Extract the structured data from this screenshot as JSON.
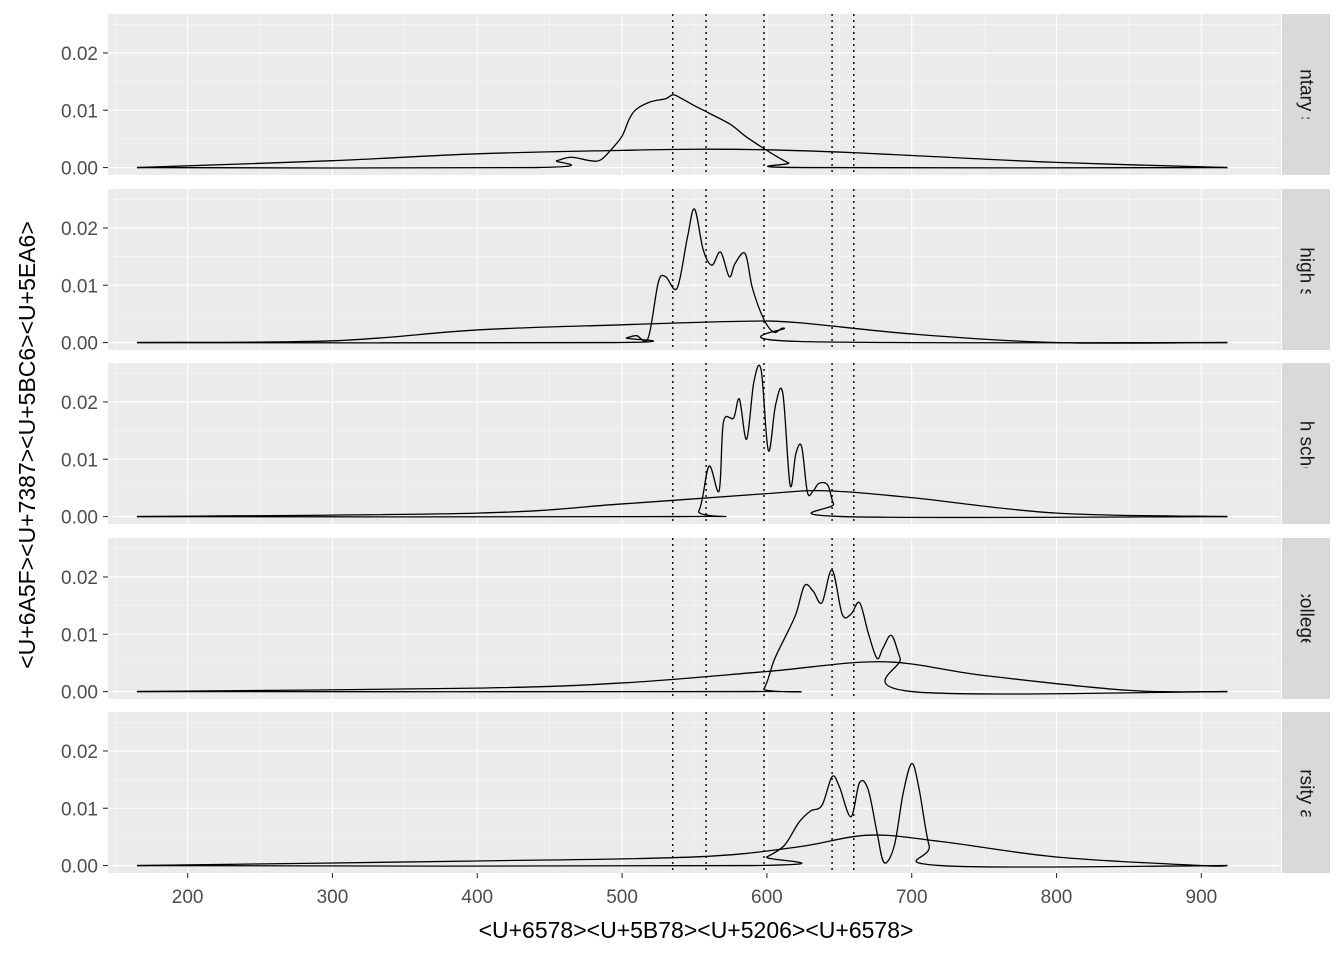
{
  "chart_data": {
    "type": "line",
    "subtype": "faceted density plot",
    "xlabel": "<U+6578><U+5B78><U+5206><U+6578>",
    "ylabel": "<U+6A5F><U+7387><U+5BC6><U+5EA6>",
    "xlim": [
      145,
      955
    ],
    "ylim": [
      -0.0013,
      0.0268
    ],
    "x_ticks": [
      200,
      300,
      400,
      500,
      600,
      700,
      800,
      900
    ],
    "x_tick_labels": [
      "200",
      "300",
      "400",
      "500",
      "600",
      "700",
      "800",
      "900"
    ],
    "y_ticks": [
      0.0,
      0.01,
      0.02
    ],
    "y_tick_labels": [
      "0.00",
      "0.01",
      "0.02"
    ],
    "grid": true,
    "legend": "none",
    "reference_lines": {
      "style": "dotted",
      "x": [
        535,
        558,
        598,
        645,
        660
      ]
    },
    "facets": [
      {
        "label": "elementary school",
        "series": [
          {
            "x": [
              165,
              300,
              400,
              500,
              550,
              600,
              650,
              700,
              800,
              918
            ],
            "y": [
              0.0,
              0.0012,
              0.0024,
              0.003,
              0.0032,
              0.0031,
              0.0027,
              0.0021,
              0.0009,
              0.0
            ]
          },
          {
            "x": [
              165,
              440,
              455,
              465,
              478,
              485,
              492,
              500,
              505,
              510,
              520,
              530,
              535,
              540,
              550,
              560,
              575,
              585,
              598,
              605,
              615,
              625,
              918
            ],
            "y": [
              0.0,
              0.0,
              0.0012,
              0.0018,
              0.0012,
              0.0013,
              0.003,
              0.0055,
              0.0085,
              0.0102,
              0.0115,
              0.012,
              0.0127,
              0.0122,
              0.0108,
              0.0095,
              0.0075,
              0.0055,
              0.0033,
              0.0022,
              0.0008,
              0.0,
              0.0
            ]
          }
        ]
      },
      {
        "label": "junior high school",
        "series": [
          {
            "x": [
              165,
              300,
              400,
              500,
              580,
              620,
              700,
              800,
              918
            ],
            "y": [
              0.0,
              0.0003,
              0.0022,
              0.0031,
              0.0037,
              0.0035,
              0.0015,
              0.0,
              0.0
            ]
          },
          {
            "x": [
              165,
              495,
              503,
              510,
              518,
              525,
              530,
              538,
              545,
              550,
              556,
              562,
              568,
              574,
              578,
              585,
              590,
              598,
              605,
              612,
              620,
              918
            ],
            "y": [
              0.0,
              0.0,
              0.0008,
              0.0012,
              0.0008,
              0.0105,
              0.0115,
              0.0095,
              0.0182,
              0.0233,
              0.0162,
              0.0135,
              0.0158,
              0.0115,
              0.0138,
              0.0155,
              0.0095,
              0.004,
              0.0018,
              0.0025,
              0.0002,
              0.0
            ]
          }
        ]
      },
      {
        "label": "high school",
        "series": [
          {
            "x": [
              165,
              400,
              500,
              600,
              640,
              700,
              800,
              918
            ],
            "y": [
              0.0,
              0.0006,
              0.0022,
              0.004,
              0.0045,
              0.0033,
              0.0006,
              0.0
            ]
          },
          {
            "x": [
              165,
              540,
              553,
              560,
              567,
              570,
              577,
              581,
              586,
              591,
              596,
              601,
              606,
              611,
              616,
              620,
              624,
              628,
              632,
              636,
              642,
              646,
              652,
              918
            ],
            "y": [
              0.0,
              0.0,
              0.001,
              0.0088,
              0.0045,
              0.0165,
              0.0172,
              0.0205,
              0.0135,
              0.0235,
              0.0256,
              0.0115,
              0.0195,
              0.0215,
              0.0055,
              0.011,
              0.0122,
              0.0042,
              0.0045,
              0.0058,
              0.0055,
              0.0022,
              0.0,
              0.0
            ]
          }
        ]
      },
      {
        "label": "college",
        "series": [
          {
            "x": [
              165,
              400,
              500,
              600,
              680,
              750,
              850,
              918
            ],
            "y": [
              0.0,
              0.0006,
              0.0015,
              0.0035,
              0.0052,
              0.0028,
              0.0002,
              0.0
            ]
          },
          {
            "x": [
              165,
              590,
              598,
              605,
              612,
              620,
              626,
              632,
              638,
              645,
              652,
              658,
              664,
              670,
              676,
              680,
              686,
              692,
              700,
              918
            ],
            "y": [
              0.0,
              0.0,
              0.0005,
              0.0055,
              0.0092,
              0.0135,
              0.0185,
              0.0175,
              0.0155,
              0.0212,
              0.0135,
              0.0135,
              0.0155,
              0.0102,
              0.0058,
              0.0075,
              0.0098,
              0.0058,
              0.0,
              0.0
            ]
          }
        ]
      },
      {
        "label": "university above",
        "series": [
          {
            "x": [
              165,
              400,
              550,
              620,
              670,
              720,
              800,
              900,
              918
            ],
            "y": [
              0.0,
              0.0008,
              0.0015,
              0.0032,
              0.0053,
              0.0042,
              0.0015,
              0.0,
              0.0
            ]
          },
          {
            "x": [
              165,
              590,
              600,
              612,
              622,
              630,
              638,
              645,
              650,
              658,
              664,
              670,
              676,
              681,
              688,
              694,
              700,
              705,
              712,
              720,
              918
            ],
            "y": [
              0.0,
              0.0,
              0.0015,
              0.0035,
              0.0075,
              0.0095,
              0.0105,
              0.0155,
              0.0138,
              0.0085,
              0.0145,
              0.0132,
              0.0058,
              0.0005,
              0.0035,
              0.0125,
              0.0178,
              0.0135,
              0.0035,
              0.0,
              0.0
            ]
          }
        ]
      }
    ]
  }
}
